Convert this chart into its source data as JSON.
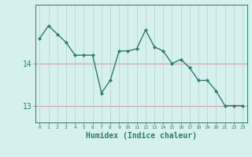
{
  "x": [
    0,
    1,
    2,
    3,
    4,
    5,
    6,
    7,
    8,
    9,
    10,
    11,
    12,
    13,
    14,
    15,
    16,
    17,
    18,
    19,
    20,
    21,
    22,
    23
  ],
  "y": [
    14.6,
    14.9,
    14.7,
    14.5,
    14.2,
    14.2,
    14.2,
    13.3,
    13.6,
    14.3,
    14.3,
    14.35,
    14.8,
    14.4,
    14.3,
    14.0,
    14.1,
    13.9,
    13.6,
    13.6,
    13.35,
    13.0,
    13.0,
    13.0
  ],
  "line_color": "#2e7d6e",
  "marker": "D",
  "marker_size": 2,
  "bg_color": "#d6f0ed",
  "grid_color_h": "#d4a0a0",
  "grid_color_v": "#b8d8d4",
  "xlabel": "Humidex (Indice chaleur)",
  "xlabel_fontsize": 7,
  "ytick_labels": [
    "13",
    "14"
  ],
  "ytick_values": [
    13,
    14
  ],
  "ylim": [
    12.6,
    15.4
  ],
  "xlim": [
    -0.5,
    23.5
  ],
  "xtick_values": [
    0,
    1,
    2,
    3,
    4,
    5,
    6,
    7,
    8,
    9,
    10,
    11,
    12,
    13,
    14,
    15,
    16,
    17,
    18,
    19,
    20,
    21,
    22,
    23
  ],
  "tick_color": "#2e7d6e",
  "axis_color": "#2e7d6e",
  "label_color": "#2e7d6e"
}
